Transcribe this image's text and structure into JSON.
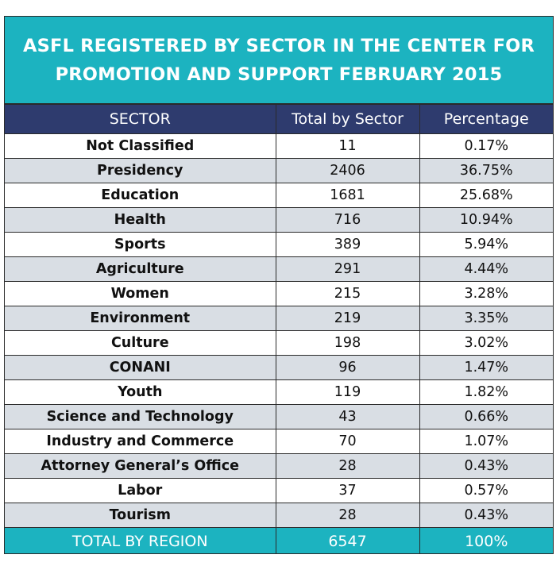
{
  "title": {
    "line1": "ASFL REGISTERED BY SECTOR IN THE CENTER FOR",
    "line2": "PROMOTION AND SUPPORT FEBRUARY 2015"
  },
  "headers": {
    "sector": "SECTOR",
    "total": "Total by Sector",
    "percentage": "Percentage"
  },
  "rows": [
    {
      "sector": "Not Classified",
      "total": "11",
      "percentage": "0.17%"
    },
    {
      "sector": "Presidency",
      "total": "2406",
      "percentage": "36.75%"
    },
    {
      "sector": "Education",
      "total": "1681",
      "percentage": "25.68%"
    },
    {
      "sector": "Health",
      "total": "716",
      "percentage": "10.94%"
    },
    {
      "sector": "Sports",
      "total": "389",
      "percentage": "5.94%"
    },
    {
      "sector": "Agriculture",
      "total": "291",
      "percentage": "4.44%"
    },
    {
      "sector": "Women",
      "total": "215",
      "percentage": "3.28%"
    },
    {
      "sector": "Environment",
      "total": "219",
      "percentage": "3.35%"
    },
    {
      "sector": "Culture",
      "total": "198",
      "percentage": "3.02%"
    },
    {
      "sector": "CONANI",
      "total": "96",
      "percentage": "1.47%"
    },
    {
      "sector": "Youth",
      "total": "119",
      "percentage": "1.82%"
    },
    {
      "sector": "Science and Technology",
      "total": "43",
      "percentage": "0.66%"
    },
    {
      "sector": "Industry and Commerce",
      "total": "70",
      "percentage": "1.07%"
    },
    {
      "sector": "Attorney General’s Office",
      "total": "28",
      "percentage": "0.43%"
    },
    {
      "sector": "Labor",
      "total": "37",
      "percentage": "0.57%"
    },
    {
      "sector": "Tourism",
      "total": "28",
      "percentage": "0.43%"
    }
  ],
  "footer": {
    "label": "TOTAL BY REGION",
    "total": "6547",
    "percentage": "100%"
  },
  "colors": {
    "title_bg": "#1cb3c0",
    "header_bg": "#2e3b6e",
    "alt_row_bg": "#d9dee4",
    "footer_bg": "#1cb3c0"
  }
}
